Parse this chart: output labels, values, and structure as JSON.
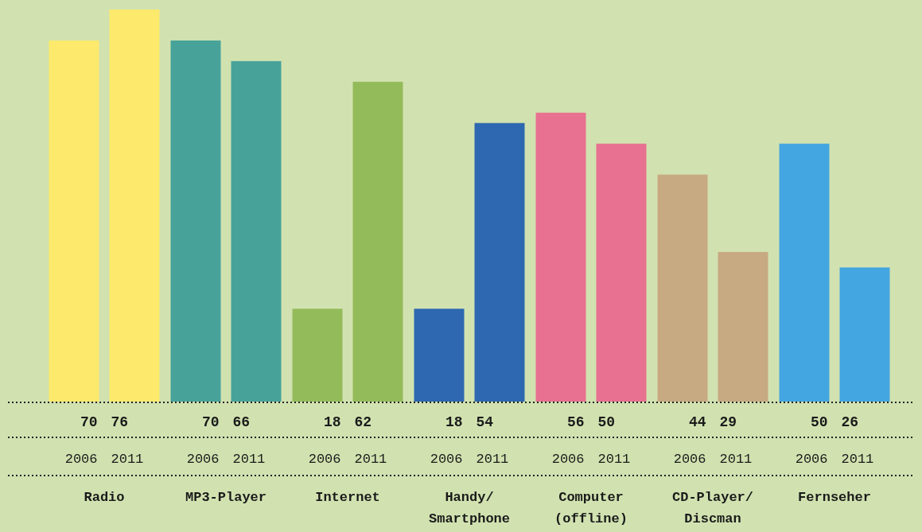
{
  "chart_data": {
    "type": "bar",
    "categories": [
      "2006",
      "2011",
      "2006",
      "2011",
      "2006",
      "2011",
      "2006",
      "2011",
      "2006",
      "2011",
      "2006",
      "2011",
      "2006",
      "2011"
    ],
    "values": [
      70,
      76,
      70,
      66,
      18,
      62,
      18,
      54,
      56,
      50,
      44,
      29,
      50,
      26
    ],
    "colors": [
      "#fde96c",
      "#fde96c",
      "#47a39a",
      "#47a39a",
      "#94bb5a",
      "#94bb5a",
      "#2e68b0",
      "#2e68b0",
      "#e87090",
      "#e87090",
      "#c7a982",
      "#c7a982",
      "#44a6e0",
      "#44a6e0"
    ],
    "data_labels": true,
    "annotations": [
      "Radio",
      "MP3-Player",
      "Internet",
      "Handy/\nSmartphone",
      "Computer\n(offline)",
      "CD-Player/\nDiscman",
      "Fernseher"
    ]
  }
}
